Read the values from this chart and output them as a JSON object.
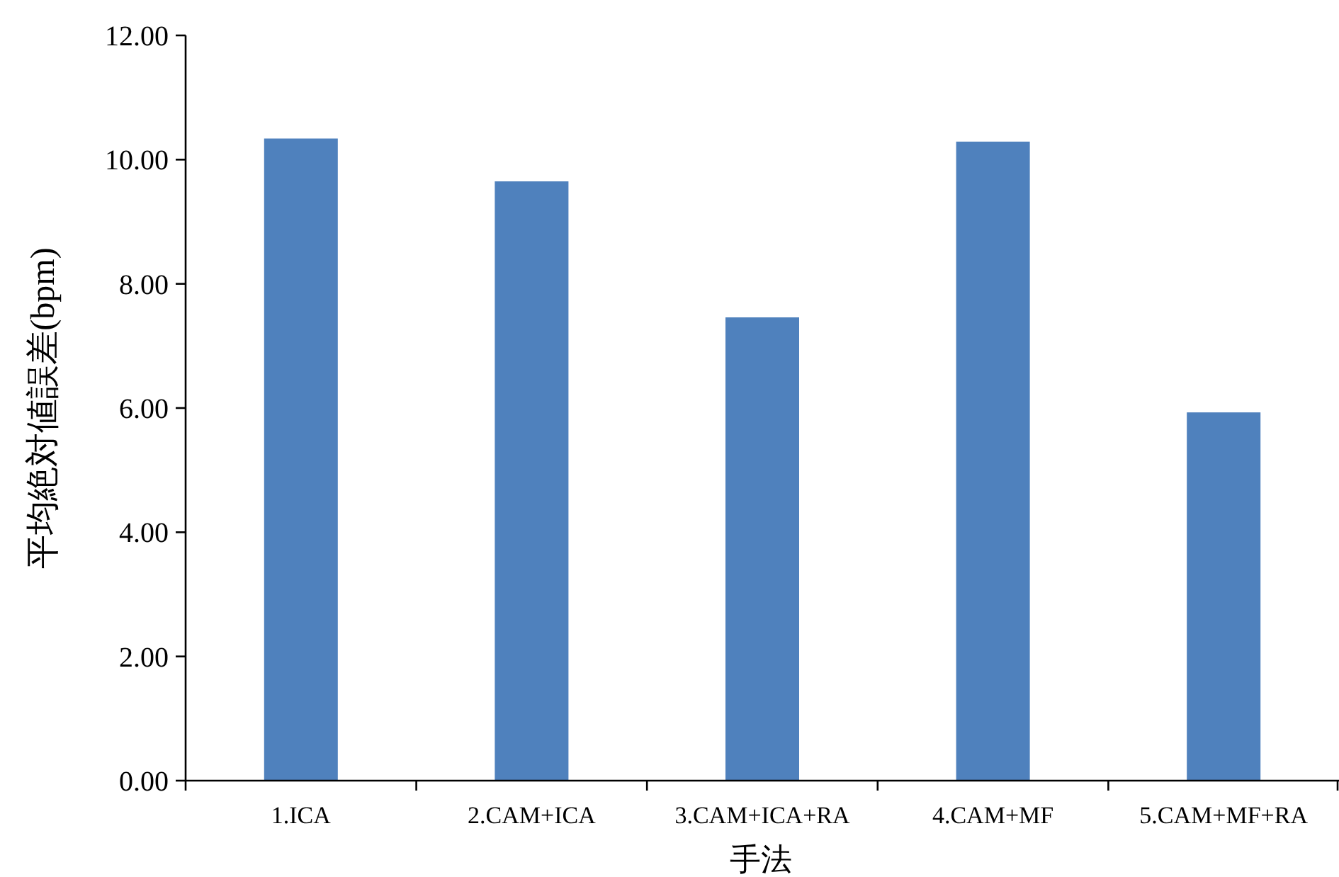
{
  "chart_data": {
    "type": "bar",
    "xlabel": "手法",
    "ylabel": "平均絶対値誤差(bpm)",
    "categories": [
      "1.ICA",
      "2.CAM+ICA",
      "3.CAM+ICA+RA",
      "4.CAM+MF",
      "5.CAM+MF+RA"
    ],
    "values": [
      10.34,
      9.65,
      7.46,
      10.29,
      5.93
    ],
    "color": "#4f81bd",
    "ylim": [
      0,
      12
    ],
    "yticks": [
      {
        "value": 0,
        "label": "0.00"
      },
      {
        "value": 2,
        "label": "2.00"
      },
      {
        "value": 4,
        "label": "4.00"
      },
      {
        "value": 6,
        "label": "6.00"
      },
      {
        "value": 8,
        "label": "8.00"
      },
      {
        "value": 10,
        "label": "10.00"
      },
      {
        "value": 12,
        "label": "12.00"
      }
    ],
    "grid": false
  }
}
